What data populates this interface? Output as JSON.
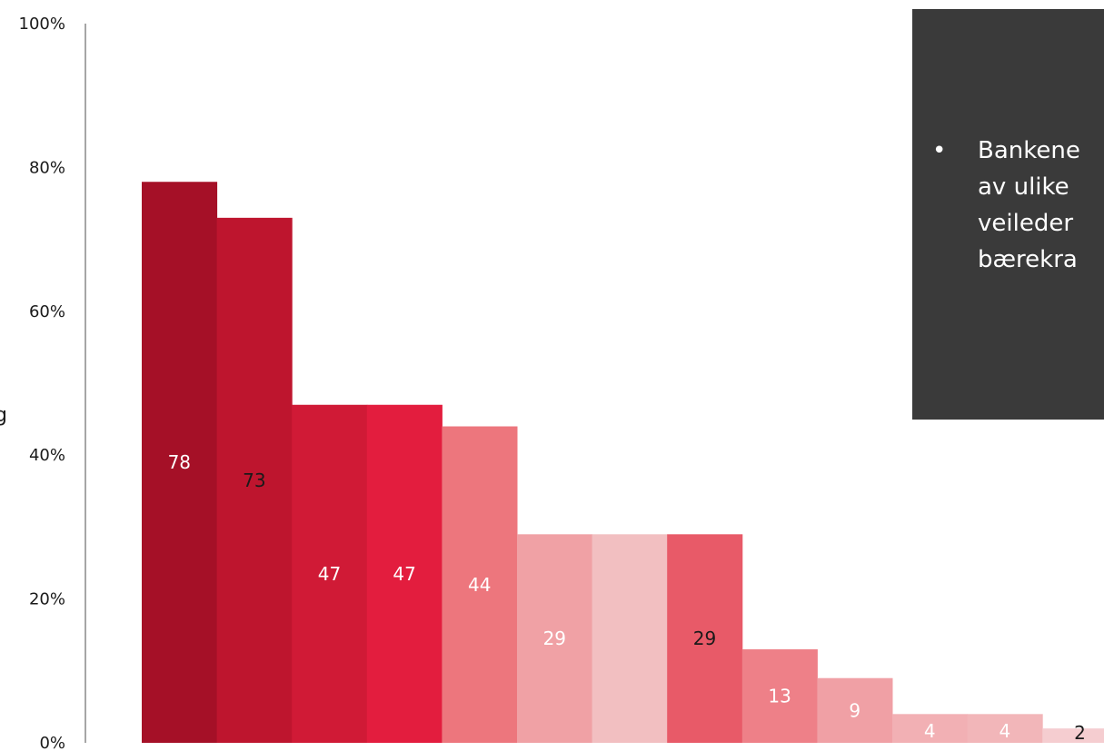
{
  "left_clip_text": "g",
  "callout": {
    "bullet": "•",
    "lines": [
      "Bankene",
      "av ulike",
      "veileder",
      "bærekra"
    ]
  },
  "chart_data": {
    "type": "bar",
    "ylim": [
      0,
      100
    ],
    "y_ticks": [
      "0%",
      "20%",
      "40%",
      "60%",
      "80%",
      "100%"
    ],
    "y_tick_values": [
      0,
      20,
      40,
      60,
      80,
      100
    ],
    "grid": false,
    "values": [
      78,
      73,
      47,
      47,
      44,
      29,
      29,
      29,
      13,
      9,
      4,
      4,
      2
    ],
    "data_labels": [
      "78",
      "73",
      "47",
      "47",
      "44",
      "29",
      "",
      "29",
      "13",
      "9",
      "4",
      "4",
      "2"
    ],
    "colors": [
      "#a51027",
      "#be152e",
      "#d01a36",
      "#e31d3e",
      "#ed767d",
      "#f0a1a5",
      "#f2bfc1",
      "#e85a68",
      "#ee8088",
      "#f0a0a5",
      "#f2b0b4",
      "#f2b6b9",
      "#f5cdd0"
    ],
    "label_colors": [
      "#ffffff",
      "#1a1a1a",
      "#ffffff",
      "#ffffff",
      "#ffffff",
      "#ffffff",
      "#ffffff",
      "#1a1a1a",
      "#ffffff",
      "#ffffff",
      "#ffffff",
      "#ffffff",
      "#1a1a1a"
    ]
  }
}
